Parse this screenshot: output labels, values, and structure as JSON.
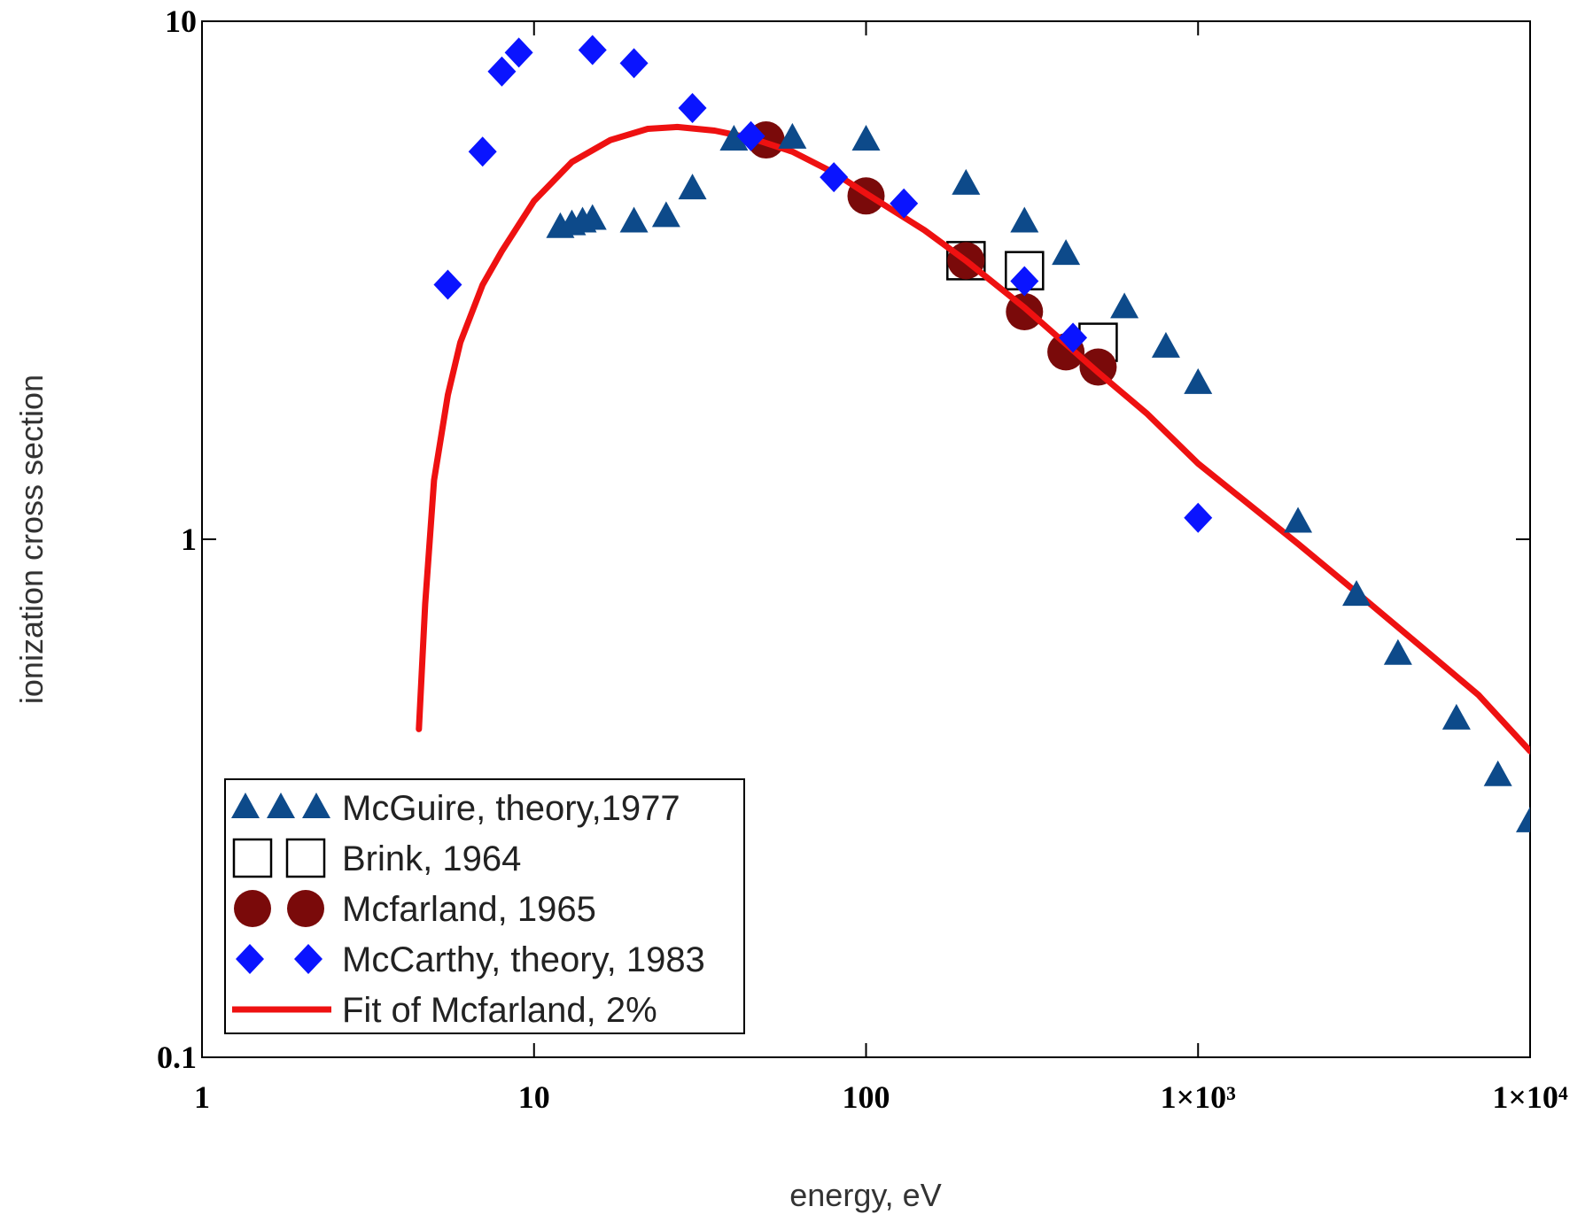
{
  "chart_data": {
    "type": "scatter",
    "title": "",
    "xlabel": "energy, eV",
    "ylabel": "ionization cross section",
    "xscale": "log",
    "yscale": "log",
    "xlim": [
      1,
      10000
    ],
    "ylim": [
      0.1,
      10
    ],
    "x_ticks": [
      {
        "value": 1,
        "label": "1"
      },
      {
        "value": 10,
        "label": "10"
      },
      {
        "value": 100,
        "label": "100"
      },
      {
        "value": 1000,
        "label": "1×10³"
      },
      {
        "value": 10000,
        "label": "1×10⁴"
      }
    ],
    "y_ticks": [
      {
        "value": 0.1,
        "label": "0.1"
      },
      {
        "value": 1,
        "label": "1"
      },
      {
        "value": 10,
        "label": "10"
      }
    ],
    "legend_position": "bottom-left",
    "series": [
      {
        "name": "McGuire, theory,1977",
        "marker": "triangle",
        "color": "#0d4a8a",
        "points": [
          [
            12,
            4.0
          ],
          [
            13,
            4.05
          ],
          [
            14,
            4.1
          ],
          [
            15,
            4.15
          ],
          [
            20,
            4.1
          ],
          [
            25,
            4.2
          ],
          [
            30,
            4.75
          ],
          [
            40,
            5.9
          ],
          [
            60,
            5.95
          ],
          [
            100,
            5.9
          ],
          [
            200,
            4.85
          ],
          [
            300,
            4.1
          ],
          [
            400,
            3.55
          ],
          [
            600,
            2.8
          ],
          [
            800,
            2.35
          ],
          [
            1000,
            2.0
          ],
          [
            2000,
            1.08
          ],
          [
            3000,
            0.78
          ],
          [
            4000,
            0.6
          ],
          [
            6000,
            0.45
          ],
          [
            8000,
            0.35
          ],
          [
            10000,
            0.285
          ]
        ]
      },
      {
        "name": "Brink, 1964",
        "marker": "square",
        "color": "#000000",
        "points": [
          [
            200,
            3.45
          ],
          [
            300,
            3.3
          ],
          [
            500,
            2.4
          ]
        ]
      },
      {
        "name": "Mcfarland, 1965",
        "marker": "circle",
        "color": "#7a0a0a",
        "points": [
          [
            50,
            5.9
          ],
          [
            100,
            4.6
          ],
          [
            200,
            3.45
          ],
          [
            300,
            2.75
          ],
          [
            400,
            2.3
          ],
          [
            500,
            2.15
          ]
        ]
      },
      {
        "name": "McCarthy, theory, 1983",
        "marker": "diamond",
        "color": "#0a14ff",
        "points": [
          [
            5.5,
            3.1
          ],
          [
            7,
            5.6
          ],
          [
            8,
            8.0
          ],
          [
            9,
            8.7
          ],
          [
            15,
            8.8
          ],
          [
            20,
            8.3
          ],
          [
            30,
            6.8
          ],
          [
            45,
            6.0
          ],
          [
            80,
            5.0
          ],
          [
            130,
            4.45
          ],
          [
            300,
            3.15
          ],
          [
            420,
            2.45
          ],
          [
            1000,
            1.1
          ]
        ]
      },
      {
        "name": "Fit of Mcfarland, 2%",
        "marker": "line",
        "color": "#ee1111",
        "points": [
          [
            4.5,
            0.43
          ],
          [
            4.7,
            0.75
          ],
          [
            5.0,
            1.3
          ],
          [
            5.5,
            1.9
          ],
          [
            6,
            2.4
          ],
          [
            7,
            3.1
          ],
          [
            8,
            3.6
          ],
          [
            10,
            4.5
          ],
          [
            13,
            5.35
          ],
          [
            17,
            5.9
          ],
          [
            22,
            6.2
          ],
          [
            27,
            6.25
          ],
          [
            35,
            6.15
          ],
          [
            45,
            5.95
          ],
          [
            60,
            5.6
          ],
          [
            80,
            5.1
          ],
          [
            100,
            4.65
          ],
          [
            150,
            3.95
          ],
          [
            200,
            3.45
          ],
          [
            300,
            2.8
          ],
          [
            500,
            2.1
          ],
          [
            700,
            1.75
          ],
          [
            1000,
            1.4
          ],
          [
            2000,
            0.98
          ],
          [
            3000,
            0.79
          ],
          [
            5000,
            0.6
          ],
          [
            7000,
            0.5
          ],
          [
            10000,
            0.39
          ]
        ]
      }
    ]
  }
}
